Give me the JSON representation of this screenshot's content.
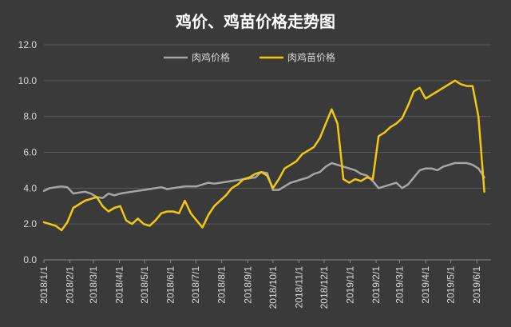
{
  "chart_data": {
    "type": "line",
    "title": "鸡价、鸡苗价格走势图",
    "xlabel": "",
    "ylabel": "",
    "ylim": [
      0,
      12
    ],
    "yticks": [
      "0.0",
      "2.0",
      "4.0",
      "6.0",
      "8.0",
      "10.0",
      "12.0"
    ],
    "xtick_labels": [
      "2018/1/1",
      "2018/2/1",
      "2018/3/1",
      "2018/4/1",
      "2018/5/1",
      "2018/6/1",
      "2018/7/1",
      "2018/8/1",
      "2018/9/1",
      "2018/10/1",
      "2018/11/1",
      "2018/12/1",
      "2019/1/1",
      "2019/2/1",
      "2019/3/1",
      "2019/4/1",
      "2019/5/1",
      "2019/6/1"
    ],
    "grid": true,
    "legend_position": "top-center",
    "series": [
      {
        "name": "肉鸡价格",
        "color": "#a6a6a6",
        "x": [
          "2018/1/1",
          "2018/1/8",
          "2018/1/15",
          "2018/1/22",
          "2018/1/29",
          "2018/2/5",
          "2018/2/12",
          "2018/2/19",
          "2018/2/26",
          "2018/3/5",
          "2018/3/12",
          "2018/3/19",
          "2018/3/26",
          "2018/4/2",
          "2018/4/9",
          "2018/4/16",
          "2018/4/23",
          "2018/4/30",
          "2018/5/7",
          "2018/5/14",
          "2018/5/21",
          "2018/5/28",
          "2018/6/4",
          "2018/6/11",
          "2018/6/18",
          "2018/6/25",
          "2018/7/2",
          "2018/7/9",
          "2018/7/16",
          "2018/7/23",
          "2018/7/30",
          "2018/8/6",
          "2018/8/13",
          "2018/8/20",
          "2018/8/27",
          "2018/9/3",
          "2018/9/10",
          "2018/9/17",
          "2018/9/24",
          "2018/10/1",
          "2018/10/8",
          "2018/10/15",
          "2018/10/22",
          "2018/10/29",
          "2018/11/5",
          "2018/11/12",
          "2018/11/19",
          "2018/11/26",
          "2018/12/3",
          "2018/12/10",
          "2018/12/17",
          "2018/12/24",
          "2018/12/31",
          "2019/1/7",
          "2019/1/14",
          "2019/1/21",
          "2019/1/28",
          "2019/2/4",
          "2019/2/11",
          "2019/2/18",
          "2019/2/25",
          "2019/3/4",
          "2019/3/11",
          "2019/3/18",
          "2019/3/25",
          "2019/4/1",
          "2019/4/8",
          "2019/4/15",
          "2019/4/22",
          "2019/4/29",
          "2019/5/6",
          "2019/5/13",
          "2019/5/20",
          "2019/5/27",
          "2019/6/3",
          "2019/6/10"
        ],
        "y": [
          3.85,
          4.0,
          4.05,
          4.1,
          4.05,
          3.7,
          3.75,
          3.8,
          3.7,
          3.5,
          3.45,
          3.7,
          3.6,
          3.7,
          3.75,
          3.8,
          3.85,
          3.9,
          3.95,
          4.0,
          4.05,
          3.95,
          4.0,
          4.05,
          4.1,
          4.1,
          4.1,
          4.2,
          4.3,
          4.25,
          4.3,
          4.35,
          4.4,
          4.45,
          4.5,
          4.55,
          4.6,
          4.9,
          4.85,
          3.9,
          3.9,
          4.1,
          4.3,
          4.4,
          4.5,
          4.6,
          4.8,
          4.9,
          5.2,
          5.4,
          5.3,
          5.2,
          5.1,
          5.0,
          4.8,
          4.7,
          4.4,
          4.0,
          4.1,
          4.2,
          4.3,
          4.0,
          4.2,
          4.6,
          5.0,
          5.1,
          5.1,
          5.0,
          5.2,
          5.3,
          5.4,
          5.4,
          5.4,
          5.3,
          5.1,
          4.6
        ]
      },
      {
        "name": "肉鸡苗价格",
        "color": "#f2c811",
        "x": [
          "2018/1/1",
          "2018/1/8",
          "2018/1/15",
          "2018/1/22",
          "2018/1/29",
          "2018/2/5",
          "2018/2/12",
          "2018/2/19",
          "2018/2/26",
          "2018/3/5",
          "2018/3/12",
          "2018/3/19",
          "2018/3/26",
          "2018/4/2",
          "2018/4/9",
          "2018/4/16",
          "2018/4/23",
          "2018/4/30",
          "2018/5/7",
          "2018/5/14",
          "2018/5/21",
          "2018/5/28",
          "2018/6/4",
          "2018/6/11",
          "2018/6/18",
          "2018/6/25",
          "2018/7/2",
          "2018/7/9",
          "2018/7/16",
          "2018/7/23",
          "2018/7/30",
          "2018/8/6",
          "2018/8/13",
          "2018/8/20",
          "2018/8/27",
          "2018/9/3",
          "2018/9/10",
          "2018/9/17",
          "2018/9/24",
          "2018/10/1",
          "2018/10/8",
          "2018/10/15",
          "2018/10/22",
          "2018/10/29",
          "2018/11/5",
          "2018/11/12",
          "2018/11/19",
          "2018/11/26",
          "2018/12/3",
          "2018/12/10",
          "2018/12/17",
          "2018/12/24",
          "2018/12/31",
          "2019/1/7",
          "2019/1/14",
          "2019/1/21",
          "2019/1/28",
          "2019/2/4",
          "2019/2/11",
          "2019/2/18",
          "2019/2/25",
          "2019/3/4",
          "2019/3/11",
          "2019/3/18",
          "2019/3/25",
          "2019/4/1",
          "2019/4/8",
          "2019/4/15",
          "2019/4/22",
          "2019/4/29",
          "2019/5/6",
          "2019/5/13",
          "2019/5/20",
          "2019/5/27",
          "2019/6/3",
          "2019/6/10"
        ],
        "y": [
          2.1,
          2.0,
          1.9,
          1.65,
          2.1,
          2.9,
          3.1,
          3.3,
          3.4,
          3.5,
          3.0,
          2.7,
          2.9,
          3.0,
          2.2,
          2.0,
          2.3,
          2.0,
          1.9,
          2.2,
          2.6,
          2.7,
          2.7,
          2.6,
          3.3,
          2.6,
          2.2,
          1.8,
          2.5,
          3.0,
          3.3,
          3.6,
          4.0,
          4.2,
          4.5,
          4.6,
          4.8,
          4.9,
          4.7,
          4.0,
          4.5,
          5.1,
          5.3,
          5.5,
          5.9,
          6.1,
          6.3,
          6.8,
          7.6,
          8.4,
          7.6,
          4.5,
          4.3,
          4.5,
          4.4,
          4.6,
          4.5,
          6.9,
          7.1,
          7.4,
          7.6,
          7.9,
          8.6,
          9.4,
          9.6,
          9.0,
          9.2,
          9.4,
          9.6,
          9.8,
          10.0,
          9.8,
          9.7,
          9.7,
          8.0,
          3.8
        ]
      }
    ]
  }
}
